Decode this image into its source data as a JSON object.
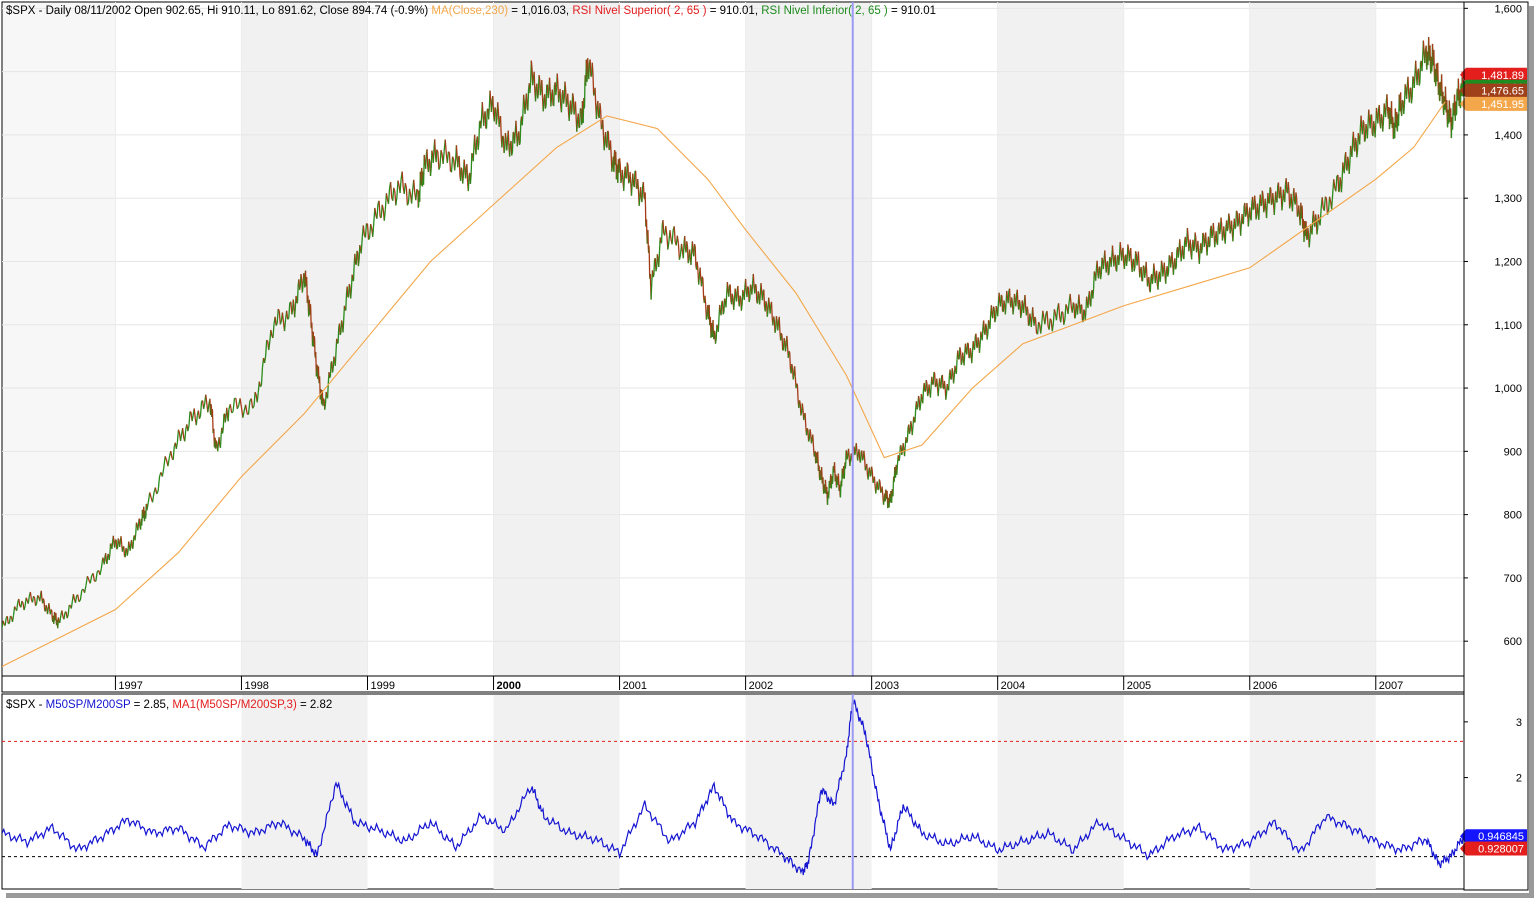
{
  "chart_data": [
    {
      "type": "line",
      "panel": "price",
      "header": {
        "symbol_info": "$SPX - Daily 08/11/2002 Open 902.65, Hi 910.11, Lo 891.62, Close 894.74 (-0.9%)",
        "ma_label": "MA(Close,230)",
        "ma_value": " = 1,016.03, ",
        "rsi_sup_label": "RSI Nivel Superior( 2, 65 )",
        "rsi_sup_value": " = 910.01, ",
        "rsi_inf_label": "RSI Nivel Inferior( 2, 65 )",
        "rsi_inf_value": " = 910.01"
      },
      "x_tick_labels": [
        "1997",
        "1998",
        "1999",
        "2000",
        "2001",
        "2002",
        "2003",
        "2004",
        "2005",
        "2006",
        "2007"
      ],
      "y_tick_labels": [
        "1,600",
        "1,500",
        "1,400",
        "1,300",
        "1,200",
        "1,100",
        "1,000",
        "900",
        "800",
        "700",
        "600"
      ],
      "y_ticks": [
        1600,
        1500,
        1400,
        1300,
        1200,
        1100,
        1000,
        900,
        800,
        700,
        600
      ],
      "ylim": [
        545,
        1610
      ],
      "xlim": [
        1996.1,
        2007.7
      ],
      "cursor_x": 2002.85,
      "series": [
        {
          "color": "#2a8a1a",
          "x": [
            1996.1,
            1996.25,
            1996.4,
            1996.5,
            1996.55,
            1996.7,
            1996.9,
            1997.0,
            1997.1,
            1997.2,
            1997.25,
            1997.45,
            1997.6,
            1997.75,
            1997.8,
            1997.9,
            1998.1,
            1998.25,
            1998.4,
            1998.5,
            1998.55,
            1998.6,
            1998.65,
            1998.75,
            1998.85,
            1998.95,
            1999.1,
            1999.25,
            1999.4,
            1999.45,
            1999.55,
            1999.7,
            1999.8,
            1999.9,
            2000.0,
            2000.1,
            2000.2,
            2000.3,
            2000.4,
            2000.5,
            2000.6,
            2000.7,
            2000.75,
            2000.85,
            2000.95,
            2001.0,
            2001.1,
            2001.2,
            2001.25,
            2001.35,
            2001.5,
            2001.6,
            2001.7,
            2001.75,
            2001.85,
            2001.95,
            2002.05,
            2002.15,
            2002.25,
            2002.35,
            2002.45,
            2002.55,
            2002.6,
            2002.65,
            2002.7,
            2002.75,
            2002.8,
            2002.9,
            2003.0,
            2003.1,
            2003.15,
            2003.2,
            2003.3,
            2003.4,
            2003.5,
            2003.6,
            2003.7,
            2003.8,
            2003.9,
            2004.0,
            2004.1,
            2004.2,
            2004.3,
            2004.45,
            2004.6,
            2004.7,
            2004.8,
            2004.9,
            2005.0,
            2005.1,
            2005.2,
            2005.3,
            2005.4,
            2005.5,
            2005.6,
            2005.7,
            2005.8,
            2005.9,
            2006.0,
            2006.1,
            2006.2,
            2006.3,
            2006.4,
            2006.45,
            2006.55,
            2006.7,
            2006.8,
            2006.9,
            2007.0,
            2007.1,
            2007.15,
            2007.2,
            2007.3,
            2007.4,
            2007.45,
            2007.5,
            2007.55,
            2007.6,
            2007.65,
            2007.7
          ],
          "y": [
            620,
            660,
            670,
            640,
            630,
            670,
            720,
            760,
            740,
            790,
            810,
            900,
            950,
            980,
            900,
            970,
            970,
            1100,
            1120,
            1180,
            1110,
            1030,
            970,
            1060,
            1150,
            1230,
            1280,
            1320,
            1300,
            1350,
            1370,
            1360,
            1330,
            1420,
            1450,
            1380,
            1400,
            1490,
            1460,
            1470,
            1450,
            1420,
            1520,
            1420,
            1360,
            1340,
            1330,
            1300,
            1160,
            1250,
            1220,
            1210,
            1120,
            1080,
            1150,
            1140,
            1160,
            1140,
            1100,
            1050,
            960,
            900,
            860,
            830,
            870,
            840,
            890,
            900,
            860,
            830,
            820,
            880,
            930,
            990,
            1010,
            1000,
            1050,
            1060,
            1090,
            1130,
            1140,
            1130,
            1100,
            1110,
            1130,
            1120,
            1190,
            1200,
            1210,
            1200,
            1170,
            1180,
            1200,
            1230,
            1220,
            1240,
            1250,
            1260,
            1280,
            1290,
            1300,
            1310,
            1280,
            1240,
            1270,
            1320,
            1370,
            1410,
            1420,
            1440,
            1410,
            1450,
            1480,
            1530,
            1520,
            1480,
            1450,
            1420,
            1460,
            1476
          ],
          "width": 1.3
        },
        {
          "color": "#f3a74a",
          "x": [
            1996.1,
            1996.6,
            1997.0,
            1997.5,
            1998.0,
            1998.5,
            1999.0,
            1999.5,
            2000.0,
            2000.5,
            2000.9,
            2001.3,
            2001.7,
            2002.0,
            2002.4,
            2002.8,
            2003.1,
            2003.4,
            2003.8,
            2004.2,
            2004.6,
            2005.0,
            2005.5,
            2006.0,
            2006.5,
            2007.0,
            2007.3,
            2007.55
          ],
          "y": [
            560,
            610,
            650,
            740,
            860,
            960,
            1080,
            1200,
            1290,
            1380,
            1430,
            1410,
            1330,
            1250,
            1150,
            1020,
            890,
            910,
            1000,
            1070,
            1100,
            1130,
            1160,
            1190,
            1260,
            1330,
            1380,
            1452
          ]
        }
      ],
      "price_tags": [
        {
          "label": "1,481.89",
          "color": "#e41d1d"
        },
        {
          "label": "1,481.89",
          "color": "#1e8c1e"
        },
        {
          "label": "1,476.65",
          "color": "#a0401a"
        },
        {
          "label": "1,451.95",
          "color": "#f3a74a"
        }
      ],
      "price_tag_values": [
        1495,
        1476,
        1470,
        1449
      ]
    },
    {
      "type": "line",
      "panel": "indicator",
      "header": {
        "prefix": "$SPX - ",
        "m_label": "M50SP/M200SP",
        "m_value": " = 2.85, ",
        "ma_label": "MA1(M50SP/M200SP,3)",
        "ma_value": " = 2.82"
      },
      "y_tick_labels": [
        "3",
        "2"
      ],
      "y_ticks": [
        3,
        2
      ],
      "ylim": [
        0.0,
        3.5
      ],
      "xlim": [
        1996.1,
        2007.7
      ],
      "upper_threshold": 2.65,
      "lower_threshold": 0.58,
      "series": [
        {
          "color": "#1414d2",
          "x": [
            1996.1,
            1996.3,
            1996.5,
            1996.7,
            1996.9,
            1997.1,
            1997.3,
            1997.5,
            1997.7,
            1997.9,
            1998.1,
            1998.3,
            1998.5,
            1998.6,
            1998.75,
            1998.9,
            1999.1,
            1999.3,
            1999.5,
            1999.7,
            1999.9,
            2000.1,
            2000.3,
            2000.4,
            2000.6,
            2000.8,
            2001.0,
            2001.2,
            2001.4,
            2001.6,
            2001.75,
            2001.9,
            2002.1,
            2002.3,
            2002.45,
            2002.5,
            2002.6,
            2002.7,
            2002.8,
            2002.85,
            2002.95,
            2003.05,
            2003.15,
            2003.25,
            2003.4,
            2003.6,
            2003.8,
            2004.0,
            2004.2,
            2004.4,
            2004.6,
            2004.8,
            2005.0,
            2005.2,
            2005.4,
            2005.6,
            2005.8,
            2006.0,
            2006.2,
            2006.4,
            2006.6,
            2006.8,
            2007.0,
            2007.2,
            2007.4,
            2007.5,
            2007.6,
            2007.7
          ],
          "y": [
            1.0,
            0.85,
            1.1,
            0.7,
            0.95,
            1.25,
            1.0,
            1.1,
            0.75,
            1.15,
            1.0,
            1.2,
            0.9,
            0.6,
            1.9,
            1.2,
            1.05,
            0.85,
            1.2,
            0.75,
            1.3,
            1.05,
            1.85,
            1.3,
            1.0,
            0.9,
            0.65,
            1.5,
            0.85,
            1.2,
            1.85,
            1.2,
            0.95,
            0.6,
            0.3,
            0.5,
            1.8,
            1.5,
            2.4,
            3.4,
            2.8,
            1.6,
            0.7,
            1.5,
            1.0,
            0.8,
            0.95,
            0.7,
            0.85,
            1.0,
            0.7,
            1.2,
            0.9,
            0.6,
            0.95,
            1.1,
            0.7,
            0.85,
            1.2,
            0.65,
            1.3,
            1.1,
            0.85,
            0.7,
            0.9,
            0.45,
            0.6,
            0.95
          ],
          "width": 1.2
        }
      ],
      "value_tags": [
        {
          "label": "0.946845",
          "color": "#1414ff"
        },
        {
          "label": "0.928007",
          "color": "#e41d1d"
        }
      ],
      "value_tag_values": [
        0.946845,
        0.728
      ]
    }
  ]
}
